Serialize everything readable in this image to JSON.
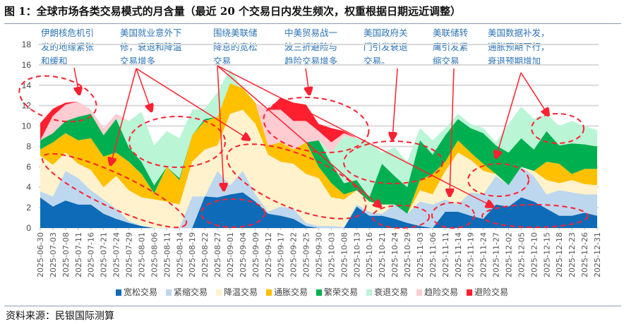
{
  "title": "图 1：全球市场各类交易模式的月含量（最近 20 个交易日内发生频次，权重根据日期远近调整）",
  "source": "资料来源：民银国际测算",
  "annotations": [
    "伊朗核危机引\n发的地缘紧张\n和缓和",
    "美国就业意外下\n修，衰退和降温\n交易增多",
    "围绕美联储\n降息的宽松\n交易",
    "中美贸易战一\n波三折避险与\n趋险交易增多",
    "美国政府关\n门引发衰退\n交易。",
    "美联储转\n鹰引发紧\n缩交易",
    "美国数据补发，\n通胀预期下行，\n衰退预期增加"
  ],
  "chart_data": {
    "type": "area",
    "stacked": true,
    "title": "",
    "xlabel": "",
    "ylabel": "",
    "ylim": [
      0,
      18
    ],
    "yticks": [
      0,
      2,
      4,
      6,
      8,
      10,
      12,
      14,
      16,
      18
    ],
    "grid": true,
    "legend_position": "bottom",
    "categories": [
      "2025-06-30",
      "2025-07-03",
      "2025-07-08",
      "2025-07-11",
      "2025-07-16",
      "2025-07-21",
      "2025-07-24",
      "2025-07-29",
      "2025-08-01",
      "2025-08-06",
      "2025-08-11",
      "2025-08-14",
      "2025-08-19",
      "2025-08-22",
      "2025-08-27",
      "2025-09-01",
      "2025-09-04",
      "2025-09-09",
      "2025-09-12",
      "2025-09-17",
      "2025-09-22",
      "2025-09-25",
      "2025-09-30",
      "2025-10-03",
      "2025-10-08",
      "2025-10-13",
      "2025-10-16",
      "2025-10-21",
      "2025-10-24",
      "2025-10-29",
      "2025-11-03",
      "2025-11-06",
      "2025-11-11",
      "2025-11-14",
      "2025-11-19",
      "2025-11-24",
      "2025-11-27",
      "2025-12-02",
      "2025-12-05",
      "2025-12-10",
      "2025-12-15",
      "2025-12-18",
      "2025-12-23",
      "2025-12-26",
      "2025-12-31"
    ],
    "series": [
      {
        "name": "宽松交易",
        "color": "#0e6bb8",
        "values": [
          3.0,
          2.1,
          2.7,
          2.3,
          2.3,
          1.4,
          0.9,
          0.5,
          0.2,
          0,
          0,
          0,
          0,
          3.1,
          3.0,
          3.3,
          3.5,
          2.6,
          1.4,
          1.2,
          0.9,
          0.2,
          0,
          0,
          0,
          2.1,
          1.2,
          1.2,
          0.9,
          0.5,
          0.2,
          0,
          1.6,
          1.6,
          1.2,
          0.9,
          2.3,
          2.1,
          3.0,
          2.6,
          1.9,
          1.2,
          1.2,
          1.5,
          1.2
        ]
      },
      {
        "name": "紧缩交易",
        "color": "#bdd7ee",
        "values": [
          0.6,
          1.0,
          2.9,
          2.6,
          1.4,
          1.4,
          1.0,
          0.2,
          0,
          0,
          0,
          0,
          3.1,
          0,
          2.6,
          0.9,
          2.1,
          0.7,
          0.2,
          0.9,
          1.0,
          0.3,
          0.2,
          0.2,
          0.1,
          0.2,
          0.4,
          0.2,
          1.4,
          0.9,
          2.4,
          2.3,
          1.2,
          0.7,
          2.3,
          2.4,
          2.8,
          2.1,
          3.0,
          2.5,
          1.4,
          2.5,
          2.3,
          1.8,
          2.1
        ]
      },
      {
        "name": "降温交易",
        "color": "#fff2cc",
        "values": [
          3.5,
          3.1,
          1.8,
          1.4,
          2.0,
          1.2,
          3.2,
          3.0,
          2.8,
          2.8,
          2.6,
          2.3,
          3.4,
          4.6,
          2.5,
          7.0,
          6.0,
          6.9,
          5.6,
          4.4,
          4.4,
          4.8,
          4.7,
          2.8,
          2.7,
          1.4,
          1.0,
          0.9,
          0,
          0,
          1.1,
          1.0,
          2.8,
          5.1,
          3.2,
          2.3,
          0.2,
          0,
          0,
          0.5,
          1.4,
          0.7,
          1.2,
          1.0,
          0.9
        ]
      },
      {
        "name": "通胀交易",
        "color": "#ffc000",
        "values": [
          0.6,
          2.2,
          1.9,
          2.3,
          3.1,
          3.0,
          2.3,
          2.8,
          2.3,
          0.6,
          3.4,
          2.4,
          2.6,
          2.8,
          2.8,
          3.0,
          2.1,
          2.1,
          0.9,
          1.9,
          1.4,
          3.1,
          1.1,
          1.4,
          0.5,
          0,
          0,
          0,
          0,
          0,
          1.0,
          2.0,
          0.9,
          1.2,
          0.7,
          0.7,
          0,
          0,
          0,
          0,
          1.8,
          1.9,
          0.6,
          1.5,
          1.6
        ]
      },
      {
        "name": "繁荣交易",
        "color": "#00b050",
        "values": [
          0.9,
          0.9,
          1.2,
          2.3,
          2.4,
          2.1,
          3.3,
          1.4,
          1.2,
          0.8,
          0,
          0.2,
          0,
          0.2,
          0,
          0,
          0,
          0,
          0,
          0,
          0,
          0,
          2.6,
          1.9,
          1.1,
          1.0,
          0.4,
          4.0,
          2.8,
          2.6,
          3.9,
          1.9,
          2.6,
          2.1,
          2.4,
          3.0,
          2.8,
          3.2,
          2.8,
          2.1,
          3.0,
          1.8,
          3.0,
          2.4,
          2.2
        ]
      },
      {
        "name": "衰退交易",
        "color": "#baf5d6",
        "values": [
          0,
          0,
          0,
          0,
          0,
          0,
          0,
          2.6,
          4.9,
          3.9,
          3.5,
          3.9,
          2.5,
          1.0,
          2.4,
          1.4,
          0,
          0,
          0,
          0,
          0,
          0,
          0,
          1.1,
          4.6,
          4.1,
          5.4,
          1.1,
          2.8,
          2.5,
          1.2,
          1.4,
          0.7,
          0.5,
          0.4,
          0.5,
          0.3,
          2.8,
          3.1,
          3.0,
          1.7,
          1.9,
          2.2,
          1.8,
          1.6
        ]
      },
      {
        "name": "趋险交易",
        "color": "#ffccd2",
        "values": [
          0,
          1.7,
          1.6,
          1.5,
          0.4,
          0.7,
          0.5,
          0,
          0,
          0,
          0,
          0,
          0,
          0,
          0,
          0,
          0,
          0,
          3.5,
          3.2,
          2.8,
          2.1,
          0.9,
          1.0,
          0.3,
          0,
          0,
          0,
          0,
          0,
          0,
          0,
          0,
          0,
          0,
          0,
          0,
          0,
          0,
          0,
          0,
          0,
          0,
          0,
          0
        ]
      },
      {
        "name": "避险交易",
        "color": "#ff1f2f",
        "values": [
          1.7,
          0.7,
          0.2,
          0,
          0,
          0,
          0,
          0,
          0,
          0,
          0,
          0,
          0,
          0,
          0,
          0,
          0,
          0,
          0,
          1.2,
          1.8,
          1.6,
          0.7,
          1.4,
          0.2,
          0,
          0,
          0,
          0,
          0,
          0,
          0,
          0,
          0,
          0,
          0,
          0,
          0,
          0,
          0,
          0,
          0,
          0,
          0,
          0
        ]
      }
    ]
  }
}
